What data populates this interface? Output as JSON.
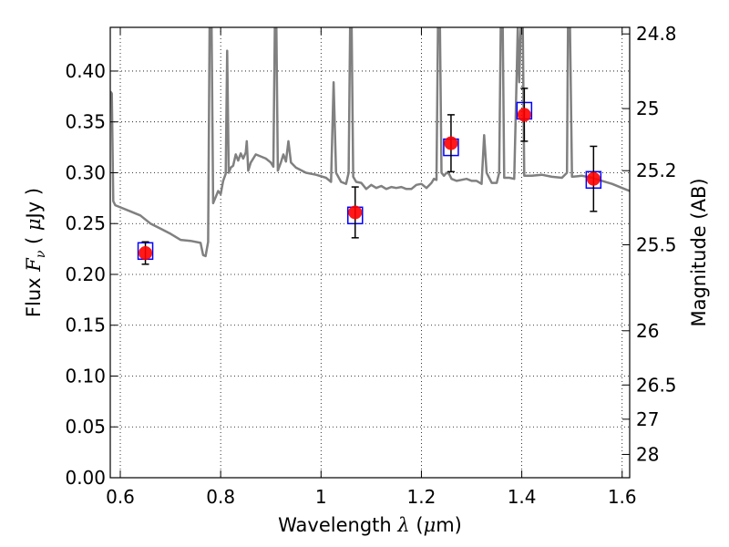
{
  "chart_data": {
    "type": "line",
    "xlabel": {
      "prefix": "Wavelength  ",
      "symbol": "λ",
      "unit_open": " (",
      "unit_mu": "μ",
      "unit_rest": "m)"
    },
    "ylabel": {
      "prefix": "Flux  ",
      "symbol": "F",
      "sub": "ν",
      "unit_open": "  ( ",
      "unit_mu": "μ",
      "unit_rest": "Jy )"
    },
    "y2label": "Magnitude (AB)",
    "xlim": [
      0.58,
      1.615
    ],
    "ylim": [
      0.0,
      0.443
    ],
    "grid": true,
    "x_ticks": [
      {
        "value": 0.6,
        "label": "0.6"
      },
      {
        "value": 0.8,
        "label": "0.8"
      },
      {
        "value": 1.0,
        "label": "1"
      },
      {
        "value": 1.2,
        "label": "1.2"
      },
      {
        "value": 1.4,
        "label": "1.4"
      },
      {
        "value": 1.6,
        "label": "1.6"
      }
    ],
    "y_ticks": [
      {
        "value": 0.0,
        "label": "0.00"
      },
      {
        "value": 0.05,
        "label": "0.05"
      },
      {
        "value": 0.1,
        "label": "0.10"
      },
      {
        "value": 0.15,
        "label": "0.15"
      },
      {
        "value": 0.2,
        "label": "0.20"
      },
      {
        "value": 0.25,
        "label": "0.25"
      },
      {
        "value": 0.3,
        "label": "0.30"
      },
      {
        "value": 0.35,
        "label": "0.35"
      },
      {
        "value": 0.4,
        "label": "0.40"
      }
    ],
    "mag_ticks": [
      {
        "value": 24.8,
        "label": "24.8"
      },
      {
        "value": 25.0,
        "label": "25"
      },
      {
        "value": 25.2,
        "label": "25.2"
      },
      {
        "value": 25.5,
        "label": "25.5"
      },
      {
        "value": 26.0,
        "label": "26"
      },
      {
        "value": 26.5,
        "label": "26.5"
      },
      {
        "value": 27.0,
        "label": "27"
      },
      {
        "value": 28.0,
        "label": "28"
      }
    ],
    "model_spectrum": {
      "color": "#808080",
      "points": [
        [
          0.58,
          0.38
        ],
        [
          0.583,
          0.378
        ],
        [
          0.586,
          0.272
        ],
        [
          0.59,
          0.268
        ],
        [
          0.6,
          0.266
        ],
        [
          0.62,
          0.262
        ],
        [
          0.64,
          0.258
        ],
        [
          0.66,
          0.25
        ],
        [
          0.68,
          0.245
        ],
        [
          0.7,
          0.24
        ],
        [
          0.72,
          0.234
        ],
        [
          0.74,
          0.233
        ],
        [
          0.76,
          0.231
        ],
        [
          0.765,
          0.219
        ],
        [
          0.77,
          0.218
        ],
        [
          0.775,
          0.232
        ],
        [
          0.778,
          0.443
        ],
        [
          0.782,
          0.443
        ],
        [
          0.785,
          0.27
        ],
        [
          0.79,
          0.276
        ],
        [
          0.795,
          0.282
        ],
        [
          0.8,
          0.279
        ],
        [
          0.805,
          0.292
        ],
        [
          0.81,
          0.299
        ],
        [
          0.813,
          0.42
        ],
        [
          0.816,
          0.3
        ],
        [
          0.82,
          0.305
        ],
        [
          0.825,
          0.307
        ],
        [
          0.83,
          0.318
        ],
        [
          0.835,
          0.312
        ],
        [
          0.84,
          0.319
        ],
        [
          0.845,
          0.314
        ],
        [
          0.85,
          0.32
        ],
        [
          0.852,
          0.331
        ],
        [
          0.855,
          0.302
        ],
        [
          0.86,
          0.31
        ],
        [
          0.87,
          0.318
        ],
        [
          0.88,
          0.316
        ],
        [
          0.89,
          0.314
        ],
        [
          0.9,
          0.31
        ],
        [
          0.905,
          0.306
        ],
        [
          0.908,
          0.443
        ],
        [
          0.911,
          0.443
        ],
        [
          0.914,
          0.302
        ],
        [
          0.92,
          0.31
        ],
        [
          0.925,
          0.318
        ],
        [
          0.93,
          0.311
        ],
        [
          0.935,
          0.331
        ],
        [
          0.94,
          0.31
        ],
        [
          0.95,
          0.305
        ],
        [
          0.97,
          0.3
        ],
        [
          0.99,
          0.298
        ],
        [
          1.01,
          0.295
        ],
        [
          1.02,
          0.291
        ],
        [
          1.025,
          0.389
        ],
        [
          1.03,
          0.3
        ],
        [
          1.04,
          0.291
        ],
        [
          1.05,
          0.289
        ],
        [
          1.055,
          0.3
        ],
        [
          1.058,
          0.443
        ],
        [
          1.061,
          0.443
        ],
        [
          1.064,
          0.296
        ],
        [
          1.07,
          0.291
        ],
        [
          1.08,
          0.29
        ],
        [
          1.09,
          0.284
        ],
        [
          1.1,
          0.288
        ],
        [
          1.11,
          0.285
        ],
        [
          1.12,
          0.287
        ],
        [
          1.13,
          0.284
        ],
        [
          1.14,
          0.286
        ],
        [
          1.15,
          0.285
        ],
        [
          1.16,
          0.286
        ],
        [
          1.17,
          0.284
        ],
        [
          1.18,
          0.284
        ],
        [
          1.19,
          0.288
        ],
        [
          1.2,
          0.289
        ],
        [
          1.21,
          0.285
        ],
        [
          1.22,
          0.29
        ],
        [
          1.225,
          0.294
        ],
        [
          1.23,
          0.293
        ],
        [
          1.233,
          0.443
        ],
        [
          1.237,
          0.443
        ],
        [
          1.24,
          0.3
        ],
        [
          1.245,
          0.297
        ],
        [
          1.25,
          0.3
        ],
        [
          1.255,
          0.299
        ],
        [
          1.26,
          0.294
        ],
        [
          1.27,
          0.292
        ],
        [
          1.28,
          0.293
        ],
        [
          1.29,
          0.294
        ],
        [
          1.3,
          0.292
        ],
        [
          1.31,
          0.292
        ],
        [
          1.32,
          0.289
        ],
        [
          1.325,
          0.337
        ],
        [
          1.33,
          0.3
        ],
        [
          1.34,
          0.29
        ],
        [
          1.35,
          0.29
        ],
        [
          1.355,
          0.3
        ],
        [
          1.358,
          0.443
        ],
        [
          1.362,
          0.443
        ],
        [
          1.365,
          0.295
        ],
        [
          1.375,
          0.295
        ],
        [
          1.385,
          0.294
        ],
        [
          1.39,
          0.4
        ],
        [
          1.392,
          0.443
        ],
        [
          1.395,
          0.389
        ],
        [
          1.398,
          0.443
        ],
        [
          1.402,
          0.443
        ],
        [
          1.405,
          0.297
        ],
        [
          1.42,
          0.297
        ],
        [
          1.44,
          0.298
        ],
        [
          1.46,
          0.296
        ],
        [
          1.48,
          0.295
        ],
        [
          1.49,
          0.3
        ],
        [
          1.492,
          0.443
        ],
        [
          1.496,
          0.443
        ],
        [
          1.5,
          0.296
        ],
        [
          1.52,
          0.297
        ],
        [
          1.54,
          0.295
        ],
        [
          1.56,
          0.292
        ],
        [
          1.58,
          0.289
        ],
        [
          1.6,
          0.285
        ],
        [
          1.615,
          0.282
        ]
      ]
    },
    "model_photometry": {
      "color": "#0000ff",
      "marker": "open-square",
      "points": [
        [
          0.65,
          0.223
        ],
        [
          1.068,
          0.258
        ],
        [
          1.259,
          0.325
        ],
        [
          1.405,
          0.361
        ],
        [
          1.543,
          0.293
        ]
      ]
    },
    "observed": {
      "color": "#ff0000",
      "marker": "filled-circle",
      "error_color": "#000000",
      "points": [
        {
          "x": 0.65,
          "y": 0.221,
          "yerr_low": 0.011,
          "yerr_high": 0.011
        },
        {
          "x": 1.068,
          "y": 0.261,
          "yerr_low": 0.025,
          "yerr_high": 0.025
        },
        {
          "x": 1.259,
          "y": 0.329,
          "yerr_low": 0.028,
          "yerr_high": 0.028
        },
        {
          "x": 1.405,
          "y": 0.357,
          "yerr_low": 0.026,
          "yerr_high": 0.026
        },
        {
          "x": 1.543,
          "y": 0.294,
          "yerr_low": 0.032,
          "yerr_high": 0.032
        }
      ]
    }
  }
}
